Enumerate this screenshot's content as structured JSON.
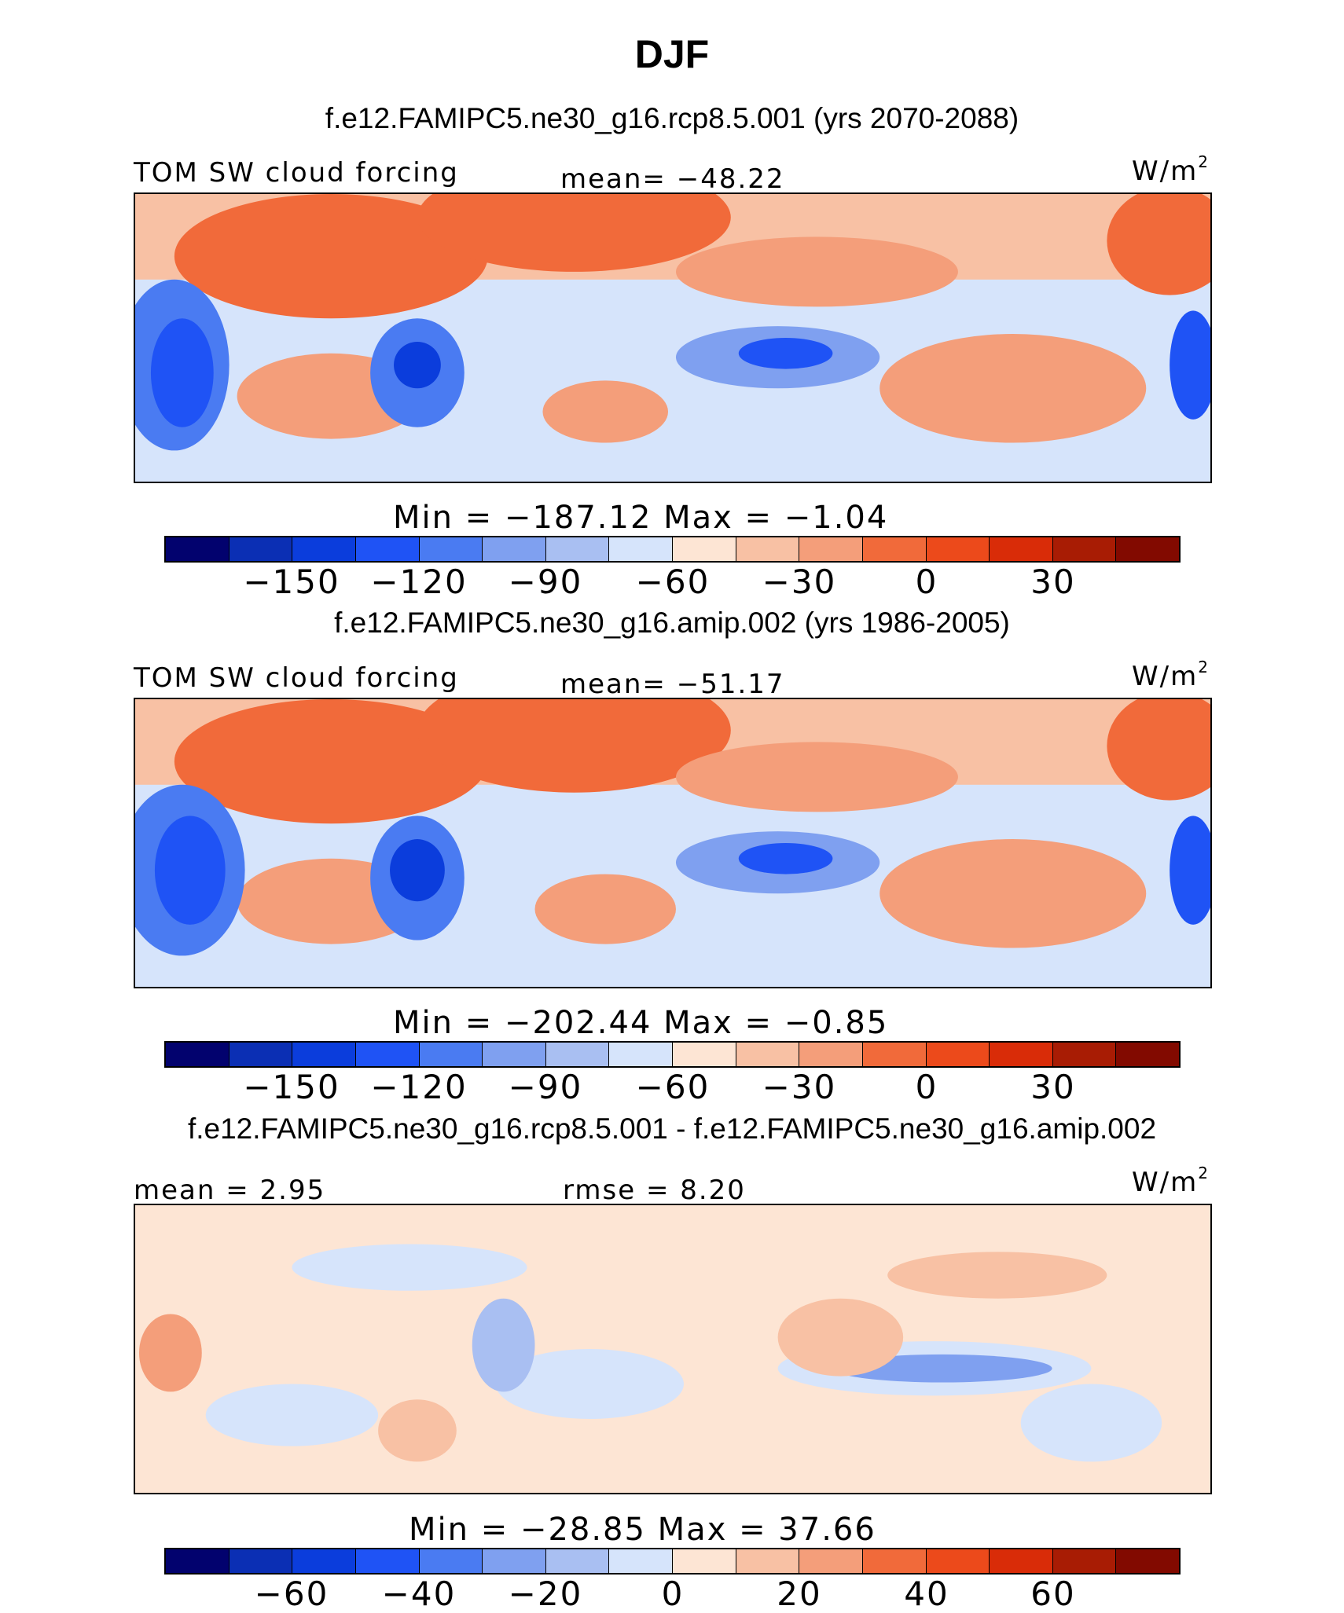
{
  "title": "DJF",
  "palette": [
    "#02026e",
    "#0b2fb4",
    "#0b3ddc",
    "#1f53f5",
    "#4a7bf2",
    "#7fa0f0",
    "#a9bff2",
    "#d6e4fb",
    "#fde5d4",
    "#f8c1a4",
    "#f49e7a",
    "#f16a3a",
    "#ec4a1b",
    "#d92c08",
    "#a81c04",
    "#820a00"
  ],
  "panels": [
    {
      "case": "f.e12.FAMIPC5.ne30_g16.rcp8.5.001 (yrs 2070-2088)",
      "left_label": "TOM SW cloud forcing",
      "center_label": "mean= −48.22",
      "units": "W/m",
      "units_sup": "2",
      "minmax": "Min  =  −187.12  Max  =   −1.04",
      "ticks": [
        "−150",
        "−120",
        "−90",
        "−60",
        "−30",
        "0",
        "30"
      ]
    },
    {
      "case": "f.e12.FAMIPC5.ne30_g16.amip.002 (yrs 1986-2005)",
      "left_label": "TOM SW cloud forcing",
      "center_label": "mean= −51.17",
      "units": "W/m",
      "units_sup": "2",
      "minmax": "Min  =  −202.44  Max  =   −0.85",
      "ticks": [
        "−150",
        "−120",
        "−90",
        "−60",
        "−30",
        "0",
        "30"
      ]
    },
    {
      "case": "f.e12.FAMIPC5.ne30_g16.rcp8.5.001 - f.e12.FAMIPC5.ne30_g16.amip.002",
      "left_label": "mean  =    2.95",
      "center_label": "rmse  =    8.20",
      "units": "W/m",
      "units_sup": "2",
      "minmax": "Min  =  −28.85  Max  =   37.66",
      "ticks": [
        "−60",
        "−40",
        "−20",
        "0",
        "20",
        "40",
        "60"
      ]
    }
  ]
}
